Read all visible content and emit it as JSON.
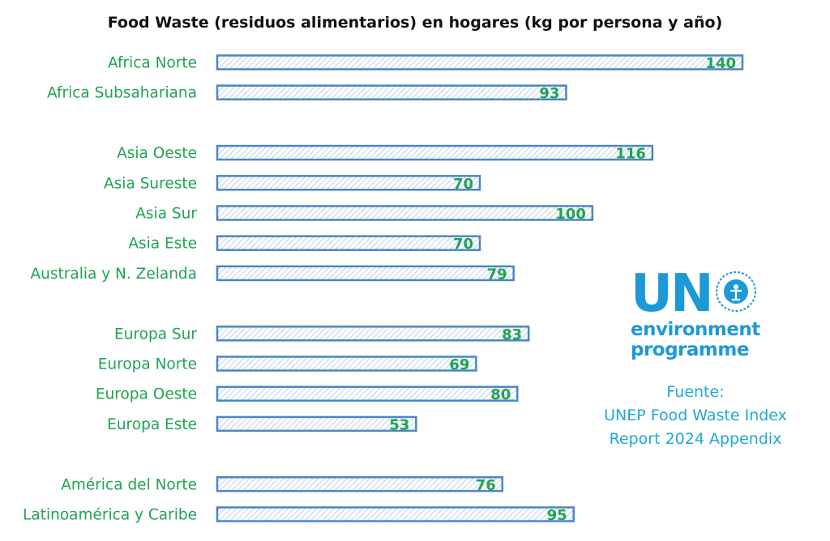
{
  "chart_data": {
    "type": "bar",
    "orientation": "horizontal",
    "title": "Food Waste (residuos alimentarios) en hogares (kg por persona y año)",
    "xlabel": "",
    "ylabel": "",
    "categories": [
      "Africa Norte",
      "Africa Subsahariana",
      "Asia Oeste",
      "Asia Sureste",
      "Asia Sur",
      "Asia Este",
      "Australia y N. Zelanda",
      "Europa Sur",
      "Europa Norte",
      "Europa Oeste",
      "Europa Este",
      "América del Norte",
      "Latinoamérica y Caribe"
    ],
    "values": [
      140,
      93,
      116,
      70,
      100,
      70,
      79,
      83,
      69,
      80,
      53,
      76,
      95
    ],
    "groups": [
      2,
      5,
      4,
      2
    ],
    "xlim": [
      0,
      140
    ],
    "grid": false,
    "legend": "none",
    "colors": {
      "label": "#1fa352",
      "bar_stroke": "#4a86c5",
      "bar_hatch": "#aac5e2"
    }
  },
  "logo": {
    "top": "UN",
    "line1": "environment",
    "line2": "programme",
    "color": "#1d9ad6"
  },
  "source": {
    "heading": "Fuente:",
    "line1": "UNEP Food Waste Index",
    "line2": "Report 2024 Appendix"
  }
}
